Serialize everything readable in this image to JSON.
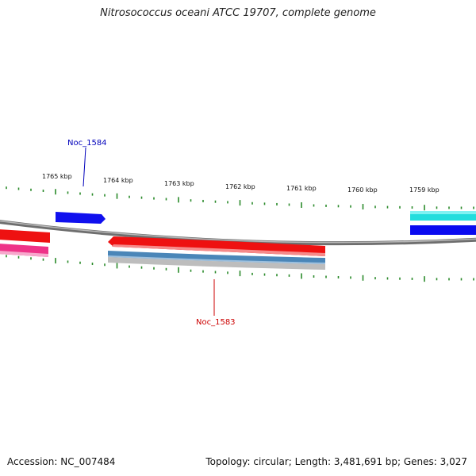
{
  "title": "Nitrosococcus oceani ATCC 19707, complete genome",
  "footer": {
    "accession": "Accession: NC_007484",
    "summary": "Topology: circular; Length: 3,481,691 bp; Genes: 3,027"
  },
  "colors": {
    "backbone": "#8a8a8a",
    "tick": "#2a8a2a",
    "forward_gene": "#1010ee",
    "reverse_gene": "#ee1111",
    "pink_track": "#ee3388",
    "cyan_track": "#22dddd",
    "steel_track": "#4a86b8",
    "grey_track": "#bdbdbd",
    "label_blue": "#0000bb",
    "label_red": "#cc0000"
  },
  "tick_labels": [
    "1765 kbp",
    "1764 kbp",
    "1763 kbp",
    "1762 kbp",
    "1761 kbp",
    "1760 kbp",
    "1759 kbp"
  ],
  "gene_labels": {
    "upper": "Noc_1584",
    "lower": "Noc_1583"
  }
}
